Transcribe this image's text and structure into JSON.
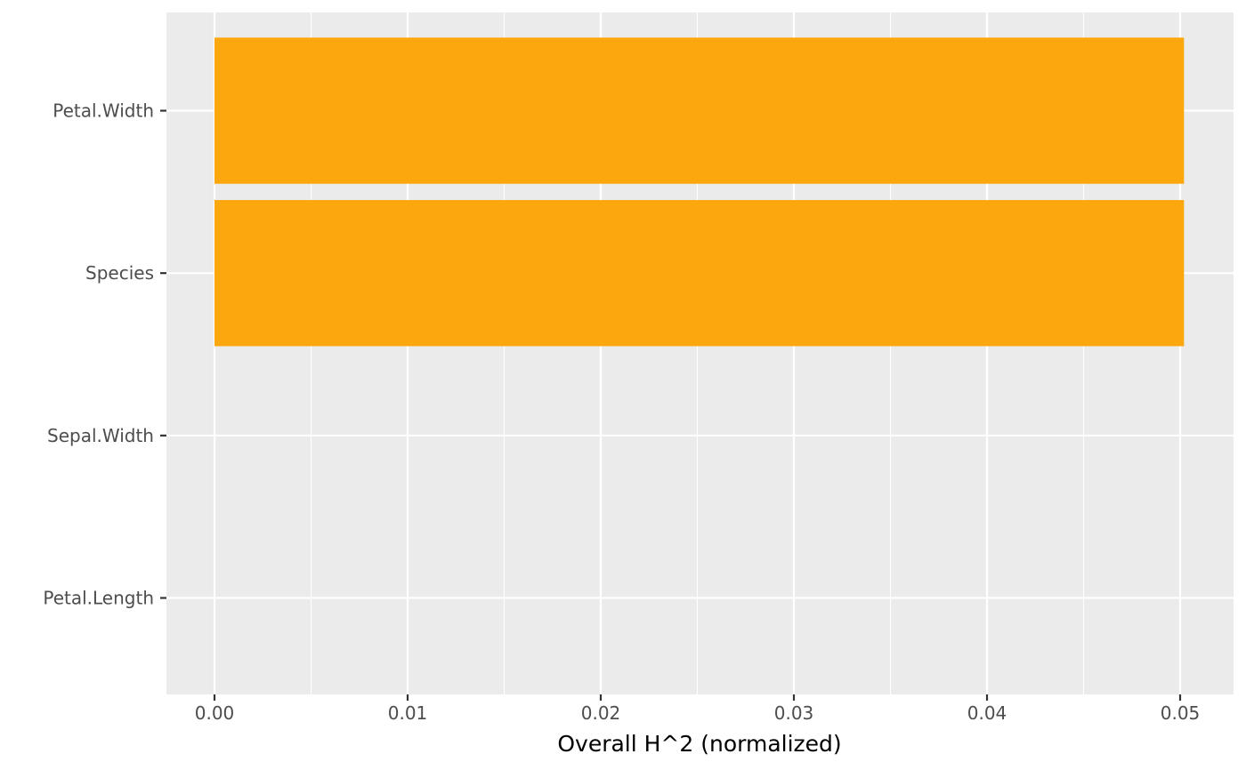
{
  "chart_data": {
    "type": "bar",
    "orientation": "horizontal",
    "categories": [
      "Petal.Width",
      "Species",
      "Sepal.Width",
      "Petal.Length"
    ],
    "values": [
      0.0502,
      0.0502,
      0,
      0
    ],
    "xlabel": "Overall H^2 (normalized)",
    "ylabel": "",
    "title": "",
    "xlim": [
      -0.0025,
      0.0528
    ],
    "x_ticks": [
      0.0,
      0.01,
      0.02,
      0.03,
      0.04,
      0.05
    ],
    "x_tick_labels": [
      "0.00",
      "0.01",
      "0.02",
      "0.03",
      "0.04",
      "0.05"
    ],
    "x_minor_ticks": [
      0.005,
      0.015,
      0.025,
      0.035,
      0.045
    ],
    "grid": true,
    "legend": "none",
    "colors": {
      "bar": "#fca70d",
      "panel": "#ebebeb",
      "grid": "#ffffff",
      "tick_text": "#4d4d4d",
      "tick_mark": "#333333"
    }
  }
}
